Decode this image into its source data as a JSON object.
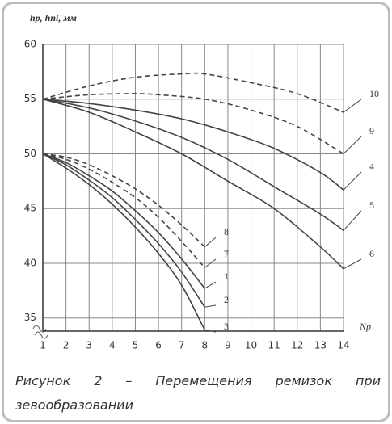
{
  "chart_data": {
    "type": "line",
    "y_label": "hр, hпі, мм",
    "x_label": "Nр",
    "x": [
      1,
      2,
      3,
      4,
      5,
      6,
      7,
      8,
      9,
      10,
      11,
      12,
      13,
      14
    ],
    "series": [
      {
        "name": "10",
        "dashed": true,
        "color": "#444",
        "x": [
          1,
          3,
          5,
          7,
          8,
          10,
          12,
          14
        ],
        "values": [
          55,
          56.2,
          57,
          57.3,
          57.3,
          56.5,
          55.5,
          53.8
        ]
      },
      {
        "name": "9",
        "dashed": true,
        "color": "#444",
        "x": [
          1,
          3,
          5,
          6,
          8,
          10,
          12,
          14
        ],
        "values": [
          55,
          55.4,
          55.5,
          55.4,
          55,
          54,
          52.5,
          50
        ]
      },
      {
        "name": "4",
        "dashed": false,
        "color": "#444",
        "x": [
          1,
          3,
          5,
          7,
          9,
          11,
          13,
          14
        ],
        "values": [
          55,
          54.6,
          54,
          53.2,
          52,
          50.5,
          48.3,
          46.7
        ]
      },
      {
        "name": "5",
        "dashed": false,
        "color": "#444",
        "x": [
          1,
          3,
          5,
          7,
          9,
          11,
          13,
          14
        ],
        "values": [
          55,
          54.2,
          53,
          51.5,
          49.5,
          47,
          44.5,
          43
        ]
      },
      {
        "name": "6",
        "dashed": false,
        "color": "#444",
        "x": [
          1,
          3,
          5,
          7,
          9,
          11,
          13,
          14
        ],
        "values": [
          55,
          53.8,
          52,
          50,
          47.5,
          45,
          41.5,
          39.5
        ]
      },
      {
        "name": "8",
        "dashed": true,
        "color": "#444",
        "x": [
          1,
          2,
          3,
          4,
          5,
          6,
          7,
          8
        ],
        "values": [
          50,
          49.7,
          49,
          48,
          46.8,
          45.3,
          43.5,
          41.5
        ]
      },
      {
        "name": "7",
        "dashed": true,
        "color": "#444",
        "x": [
          1,
          2,
          3,
          4,
          5,
          6,
          7,
          8
        ],
        "values": [
          50,
          49.5,
          48.6,
          47.4,
          46,
          44.2,
          42,
          39.6
        ]
      },
      {
        "name": "1",
        "dashed": false,
        "color": "#444",
        "x": [
          1,
          2,
          3,
          4,
          5,
          6,
          7,
          8
        ],
        "values": [
          50,
          49.2,
          48,
          46.6,
          44.8,
          42.8,
          40.4,
          37.7
        ]
      },
      {
        "name": "2",
        "dashed": false,
        "color": "#444",
        "x": [
          1,
          2,
          3,
          4,
          5,
          6,
          7,
          8
        ],
        "values": [
          50,
          49,
          47.6,
          46,
          44,
          41.8,
          39.2,
          36
        ]
      },
      {
        "name": "3",
        "dashed": false,
        "color": "#444",
        "x": [
          1,
          2,
          3,
          4,
          5,
          6,
          7,
          8
        ],
        "values": [
          50,
          48.7,
          47.2,
          45.4,
          43.3,
          40.9,
          38,
          33.9
        ]
      }
    ],
    "xlim": [
      1,
      14
    ],
    "ylim": [
      33.8,
      60
    ],
    "xticks": [
      1,
      2,
      3,
      4,
      5,
      6,
      7,
      8,
      9,
      10,
      11,
      12,
      13,
      14
    ],
    "yticks": [
      35,
      40,
      45,
      50,
      55,
      60
    ],
    "grid": true
  },
  "caption": "Рисунок 2 – Перемещения ремизок при зевообразовании"
}
